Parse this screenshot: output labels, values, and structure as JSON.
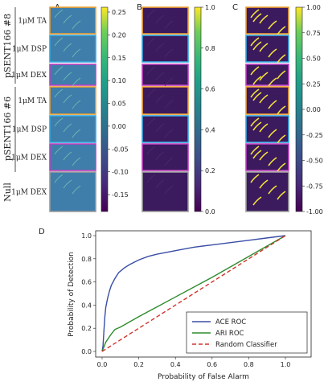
{
  "panel_letters": {
    "a": "A",
    "b": "B",
    "c": "C",
    "d": "D"
  },
  "group_labels": {
    "g1": "pSENT166 #8",
    "g2": "pSENT166 #6",
    "g3": "Null"
  },
  "row_labels": [
    "1μM TA",
    "1μM DSP",
    "1μM DEX",
    "1μM TA",
    "1μM DSP",
    "1μM DEX",
    "1μM DEX"
  ],
  "row_border_colors": [
    "#f0a030",
    "#34a8e0",
    "#c040c0",
    "#f0a030",
    "#34a8e0",
    "#c040c0",
    "#9b9b9b"
  ],
  "colorbar_a": {
    "ticks": [
      "0.25",
      "0.20",
      "0.15",
      "0.10",
      "0.05",
      "0.00",
      "-0.05",
      "-0.10",
      "-0.15"
    ]
  },
  "colorbar_b": {
    "ticks": [
      "1.0",
      "0.8",
      "0.6",
      "0.4",
      "0.2",
      "0.0"
    ]
  },
  "colorbar_c": {
    "ticks": [
      "1.00",
      "0.75",
      "0.50",
      "0.25",
      "0.00",
      "-0.25",
      "-0.50",
      "-0.75",
      "-1.00"
    ]
  },
  "chart_data": {
    "type": "line",
    "title": "",
    "xlabel": "Probability of False Alarm",
    "ylabel": "Probability of Detection",
    "xlim": [
      0.0,
      1.0
    ],
    "ylim": [
      0.0,
      1.0
    ],
    "x_ticks": [
      "0.0",
      "0.2",
      "0.4",
      "0.6",
      "0.8",
      "1.0"
    ],
    "y_ticks": [
      "0.0",
      "0.2",
      "0.4",
      "0.6",
      "0.8",
      "1.0"
    ],
    "legend_position": "lower-right",
    "series": [
      {
        "name": "ACE ROC",
        "color": "#3a4ea6",
        "dash": "none",
        "x": [
          0,
          0.005,
          0.01,
          0.015,
          0.02,
          0.03,
          0.04,
          0.05,
          0.07,
          0.09,
          0.12,
          0.15,
          0.2,
          0.25,
          0.3,
          0.4,
          0.5,
          0.6,
          0.7,
          0.8,
          0.9,
          1.0
        ],
        "y": [
          0,
          0.05,
          0.18,
          0.3,
          0.38,
          0.46,
          0.52,
          0.57,
          0.63,
          0.68,
          0.72,
          0.75,
          0.79,
          0.82,
          0.84,
          0.87,
          0.9,
          0.92,
          0.94,
          0.96,
          0.98,
          1.0
        ]
      },
      {
        "name": "ARI ROC",
        "color": "#2e8b2e",
        "dash": "none",
        "x": [
          0,
          0.02,
          0.05,
          0.07,
          0.1,
          0.2,
          0.4,
          0.6,
          0.8,
          1.0
        ],
        "y": [
          0,
          0.08,
          0.15,
          0.19,
          0.21,
          0.3,
          0.47,
          0.64,
          0.82,
          1.0
        ]
      },
      {
        "name": "Random Classifier",
        "color": "#d0352b",
        "dash": "5,3",
        "x": [
          0,
          1.0
        ],
        "y": [
          0,
          1.0
        ]
      }
    ]
  }
}
